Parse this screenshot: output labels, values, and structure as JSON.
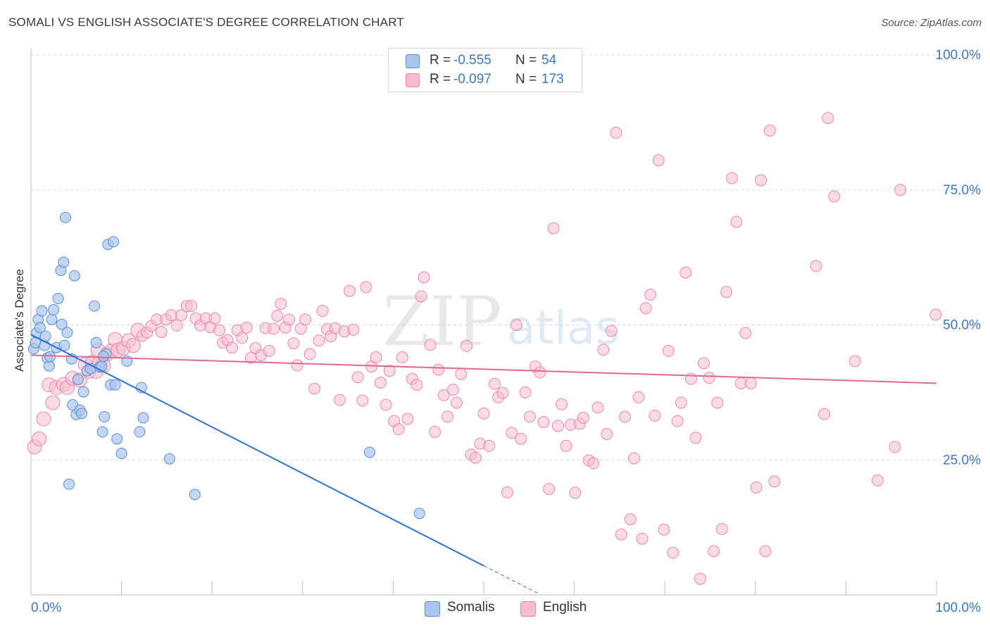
{
  "title": "SOMALI VS ENGLISH ASSOCIATE'S DEGREE CORRELATION CHART",
  "source": "Source: ZipAtlas.com",
  "watermark": {
    "part1": "ZIP",
    "part2": "atlas"
  },
  "colors": {
    "somali_fill": "#a9c6ec",
    "somali_stroke": "#5b8fd6",
    "somali_line": "#2f72d1",
    "english_fill": "#f6bccd",
    "english_stroke": "#e98aa7",
    "english_line": "#e5679a",
    "axis_label": "#3b78c4",
    "grid": "#d9d9d9"
  },
  "legend": {
    "rows": [
      {
        "r_label": "R =",
        "r_value": "-0.555",
        "n_label": "N =",
        "n_value": "54"
      },
      {
        "r_label": "R =",
        "r_value": "-0.097",
        "n_label": "N =",
        "n_value": "173"
      }
    ]
  },
  "chart_data": {
    "type": "scatter",
    "title": "SOMALI VS ENGLISH ASSOCIATE'S DEGREE CORRELATION CHART",
    "xlabel": "",
    "ylabel": "Associate's Degree",
    "xlim": [
      0,
      100
    ],
    "ylim": [
      0,
      100
    ],
    "x_tick_labels": [
      "0.0%",
      "100.0%"
    ],
    "y_tick_labels": [
      "100.0%",
      "75.0%",
      "50.0%",
      "25.0%"
    ],
    "y_tick_values": [
      100,
      75,
      50,
      25
    ],
    "grid": true,
    "series": [
      {
        "name": "Somalis",
        "r": -0.555,
        "n": 54,
        "trend": {
          "x0": 0,
          "y0": 48.2,
          "x1": 50,
          "y1": 5.4,
          "dashed_to_x": 56,
          "dashed_to_y": 0.3
        },
        "points": [
          [
            0.3,
            45.6
          ],
          [
            0.5,
            46.7
          ],
          [
            0.6,
            48.5
          ],
          [
            0.8,
            51.0
          ],
          [
            1.0,
            49.5
          ],
          [
            1.2,
            52.6
          ],
          [
            1.5,
            46.2
          ],
          [
            1.6,
            47.9
          ],
          [
            1.8,
            43.9
          ],
          [
            2.0,
            42.4
          ],
          [
            2.1,
            44.1
          ],
          [
            2.3,
            51.0
          ],
          [
            2.5,
            52.8
          ],
          [
            2.8,
            45.8
          ],
          [
            3.0,
            54.9
          ],
          [
            3.3,
            60.1
          ],
          [
            3.4,
            50.1
          ],
          [
            3.6,
            61.6
          ],
          [
            3.7,
            46.2
          ],
          [
            3.8,
            69.9
          ],
          [
            4.0,
            48.6
          ],
          [
            4.2,
            20.5
          ],
          [
            4.5,
            43.7
          ],
          [
            4.6,
            35.2
          ],
          [
            4.8,
            59.1
          ],
          [
            5.0,
            33.4
          ],
          [
            5.2,
            39.9
          ],
          [
            5.4,
            34.2
          ],
          [
            5.6,
            33.6
          ],
          [
            5.8,
            37.6
          ],
          [
            6.2,
            41.5
          ],
          [
            6.6,
            41.9
          ],
          [
            7.0,
            53.5
          ],
          [
            7.2,
            46.7
          ],
          [
            7.6,
            42.2
          ],
          [
            7.8,
            42.3
          ],
          [
            7.9,
            30.2
          ],
          [
            8.1,
            33.0
          ],
          [
            8.3,
            44.6
          ],
          [
            8.5,
            64.9
          ],
          [
            8.8,
            38.9
          ],
          [
            9.1,
            65.4
          ],
          [
            9.3,
            38.9
          ],
          [
            9.5,
            28.9
          ],
          [
            10.0,
            26.2
          ],
          [
            10.6,
            43.3
          ],
          [
            12.0,
            30.2
          ],
          [
            12.2,
            38.4
          ],
          [
            12.4,
            32.8
          ],
          [
            15.3,
            25.2
          ],
          [
            18.1,
            18.6
          ],
          [
            37.4,
            26.4
          ],
          [
            42.9,
            15.1
          ],
          [
            8.0,
            44.2
          ]
        ]
      },
      {
        "name": "English",
        "r": -0.097,
        "n": 173,
        "trend": {
          "x0": 0,
          "y0": 44.4,
          "x1": 100,
          "y1": 39.2
        },
        "points": [
          [
            0.4,
            27.4
          ],
          [
            0.9,
            28.9
          ],
          [
            1.4,
            32.6
          ],
          [
            2.0,
            38.9
          ],
          [
            2.4,
            35.6
          ],
          [
            2.8,
            38.4
          ],
          [
            3.6,
            39.0
          ],
          [
            4.0,
            38.4
          ],
          [
            4.6,
            40.1
          ],
          [
            5.4,
            39.8
          ],
          [
            6.0,
            42.7
          ],
          [
            6.4,
            41.4
          ],
          [
            6.8,
            43.1
          ],
          [
            7.2,
            41.4
          ],
          [
            7.6,
            43.0
          ],
          [
            7.4,
            45.3
          ],
          [
            8.0,
            42.5
          ],
          [
            8.4,
            44.6
          ],
          [
            8.9,
            45.2
          ],
          [
            9.3,
            47.3
          ],
          [
            9.6,
            45.3
          ],
          [
            10.2,
            45.7
          ],
          [
            10.8,
            47.1
          ],
          [
            11.3,
            46.2
          ],
          [
            11.8,
            49.0
          ],
          [
            12.3,
            48.0
          ],
          [
            12.8,
            48.6
          ],
          [
            13.3,
            49.8
          ],
          [
            13.9,
            51.0
          ],
          [
            14.4,
            48.7
          ],
          [
            14.9,
            51.0
          ],
          [
            15.5,
            51.8
          ],
          [
            16.1,
            49.9
          ],
          [
            16.6,
            51.8
          ],
          [
            17.2,
            53.5
          ],
          [
            17.7,
            53.5
          ],
          [
            18.2,
            51.2
          ],
          [
            18.7,
            49.9
          ],
          [
            19.3,
            51.2
          ],
          [
            19.8,
            49.6
          ],
          [
            20.3,
            51.2
          ],
          [
            20.8,
            49.0
          ],
          [
            21.2,
            46.7
          ],
          [
            21.7,
            47.2
          ],
          [
            22.2,
            45.8
          ],
          [
            22.8,
            49.0
          ],
          [
            23.3,
            47.6
          ],
          [
            23.8,
            49.5
          ],
          [
            24.3,
            43.9
          ],
          [
            24.8,
            45.7
          ],
          [
            25.4,
            44.4
          ],
          [
            25.9,
            49.4
          ],
          [
            26.3,
            45.2
          ],
          [
            26.8,
            49.3
          ],
          [
            27.2,
            51.7
          ],
          [
            27.6,
            53.9
          ],
          [
            28.1,
            49.5
          ],
          [
            28.5,
            51.0
          ],
          [
            29.0,
            46.6
          ],
          [
            29.4,
            42.5
          ],
          [
            29.8,
            49.3
          ],
          [
            30.3,
            51.0
          ],
          [
            30.8,
            44.6
          ],
          [
            31.3,
            38.2
          ],
          [
            31.8,
            47.1
          ],
          [
            32.2,
            52.6
          ],
          [
            32.7,
            49.2
          ],
          [
            33.1,
            47.9
          ],
          [
            33.6,
            49.4
          ],
          [
            34.1,
            36.1
          ],
          [
            34.6,
            48.8
          ],
          [
            35.2,
            56.3
          ],
          [
            35.6,
            49.1
          ],
          [
            36.1,
            40.3
          ],
          [
            36.6,
            36.0
          ],
          [
            37.0,
            57.0
          ],
          [
            37.6,
            42.3
          ],
          [
            38.1,
            44.0
          ],
          [
            38.6,
            39.3
          ],
          [
            39.2,
            35.2
          ],
          [
            39.6,
            41.5
          ],
          [
            40.1,
            32.2
          ],
          [
            40.6,
            30.7
          ],
          [
            41.0,
            44.0
          ],
          [
            41.6,
            32.6
          ],
          [
            42.1,
            40.0
          ],
          [
            42.6,
            38.9
          ],
          [
            43.1,
            55.3
          ],
          [
            43.4,
            58.8
          ],
          [
            44.1,
            46.3
          ],
          [
            44.6,
            30.2
          ],
          [
            45.0,
            41.7
          ],
          [
            45.6,
            37.0
          ],
          [
            46.0,
            33.0
          ],
          [
            46.6,
            38.0
          ],
          [
            47.0,
            35.6
          ],
          [
            47.5,
            40.9
          ],
          [
            48.1,
            46.1
          ],
          [
            48.6,
            26.0
          ],
          [
            49.1,
            25.4
          ],
          [
            49.6,
            28.0
          ],
          [
            50.0,
            33.6
          ],
          [
            50.6,
            27.6
          ],
          [
            51.2,
            39.1
          ],
          [
            51.6,
            36.6
          ],
          [
            52.1,
            37.4
          ],
          [
            52.6,
            19.0
          ],
          [
            53.1,
            30.0
          ],
          [
            53.6,
            50.0
          ],
          [
            54.1,
            28.9
          ],
          [
            54.6,
            37.5
          ],
          [
            55.1,
            33.0
          ],
          [
            55.7,
            42.3
          ],
          [
            56.2,
            41.2
          ],
          [
            56.6,
            32.0
          ],
          [
            57.2,
            19.6
          ],
          [
            57.7,
            67.9
          ],
          [
            58.2,
            31.3
          ],
          [
            58.6,
            35.3
          ],
          [
            59.1,
            27.6
          ],
          [
            59.6,
            31.5
          ],
          [
            60.1,
            18.9
          ],
          [
            60.6,
            31.7
          ],
          [
            61.0,
            32.8
          ],
          [
            61.6,
            24.9
          ],
          [
            62.1,
            24.4
          ],
          [
            62.6,
            34.7
          ],
          [
            63.2,
            45.4
          ],
          [
            63.6,
            29.8
          ],
          [
            64.1,
            48.9
          ],
          [
            64.6,
            85.6
          ],
          [
            65.2,
            11.2
          ],
          [
            65.6,
            33.0
          ],
          [
            66.2,
            14.0
          ],
          [
            66.6,
            25.3
          ],
          [
            67.1,
            36.6
          ],
          [
            67.5,
            10.4
          ],
          [
            67.9,
            53.1
          ],
          [
            68.4,
            55.6
          ],
          [
            68.9,
            33.2
          ],
          [
            69.3,
            80.5
          ],
          [
            69.9,
            12.1
          ],
          [
            70.4,
            45.2
          ],
          [
            70.9,
            7.8
          ],
          [
            71.4,
            32.2
          ],
          [
            71.8,
            35.6
          ],
          [
            72.3,
            59.7
          ],
          [
            72.9,
            40.0
          ],
          [
            73.4,
            29.1
          ],
          [
            73.9,
            3.0
          ],
          [
            74.3,
            42.9
          ],
          [
            74.9,
            40.2
          ],
          [
            75.4,
            8.1
          ],
          [
            75.8,
            35.6
          ],
          [
            76.3,
            12.2
          ],
          [
            76.8,
            56.1
          ],
          [
            77.4,
            77.2
          ],
          [
            77.9,
            69.1
          ],
          [
            78.4,
            39.2
          ],
          [
            78.9,
            48.5
          ],
          [
            79.5,
            39.2
          ],
          [
            80.1,
            19.9
          ],
          [
            80.6,
            76.8
          ],
          [
            81.1,
            8.1
          ],
          [
            81.6,
            86.0
          ],
          [
            82.1,
            21.0
          ],
          [
            86.7,
            60.9
          ],
          [
            87.6,
            33.5
          ],
          [
            88.0,
            88.3
          ],
          [
            88.7,
            73.8
          ],
          [
            91.0,
            43.3
          ],
          [
            93.5,
            21.2
          ],
          [
            95.4,
            27.4
          ],
          [
            96.0,
            75.0
          ],
          [
            99.9,
            51.9
          ]
        ]
      }
    ]
  },
  "bottom_legend": [
    {
      "label": "Somalis"
    },
    {
      "label": "English"
    }
  ]
}
